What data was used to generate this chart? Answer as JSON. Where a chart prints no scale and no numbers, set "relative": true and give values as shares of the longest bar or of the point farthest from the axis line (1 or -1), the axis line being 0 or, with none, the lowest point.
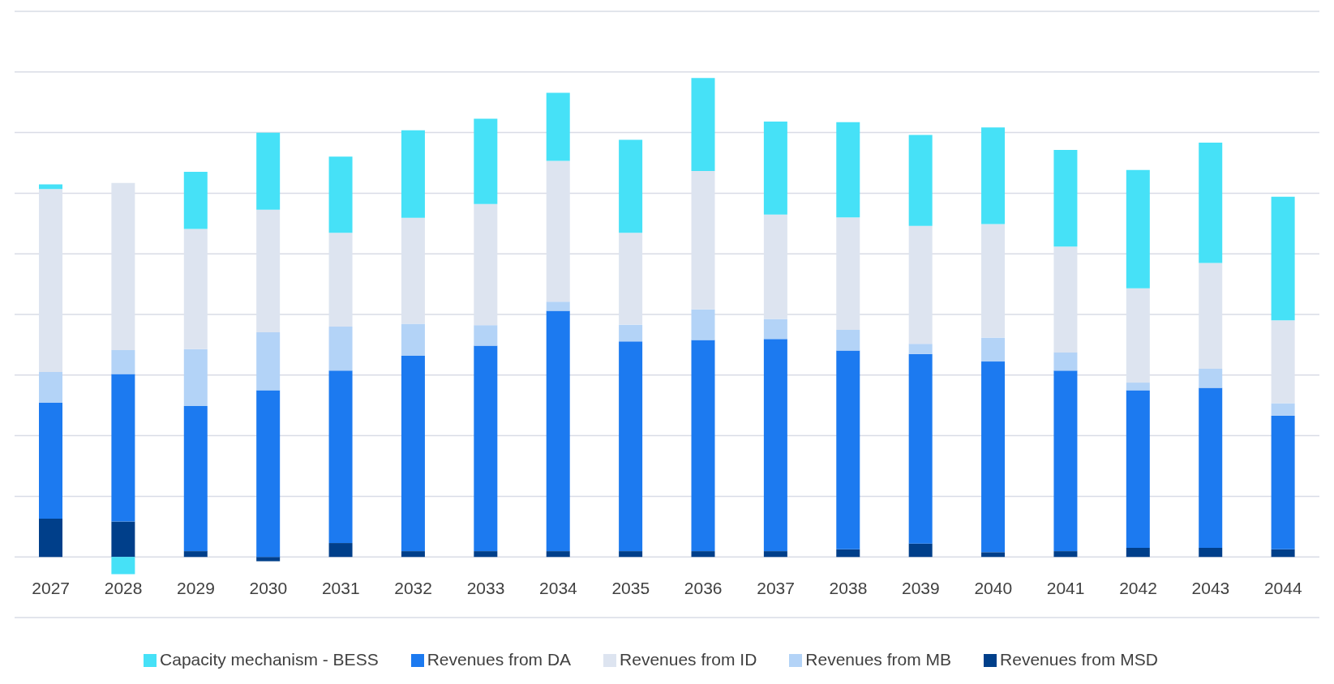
{
  "chart_data": {
    "type": "bar",
    "stacked": true,
    "relative": true,
    "grid": "y",
    "legend": "bottom",
    "categories": [
      "2027",
      "2028",
      "2029",
      "2030",
      "2031",
      "2032",
      "2033",
      "2034",
      "2035",
      "2036",
      "2037",
      "2038",
      "2039",
      "2040",
      "2041",
      "2042",
      "2043",
      "2044"
    ],
    "series": [
      {
        "name": "Revenues from MSD",
        "color": "#003f8a",
        "values": [
          0.08,
          0.074,
          0.012,
          -0.009,
          0.029,
          0.012,
          0.012,
          0.012,
          0.012,
          0.012,
          0.012,
          0.016,
          0.028,
          0.01,
          0.012,
          0.019,
          0.019,
          0.016
        ]
      },
      {
        "name": "Revenues from DA",
        "color": "#1c7af0",
        "values": [
          0.242,
          0.308,
          0.303,
          0.348,
          0.36,
          0.408,
          0.429,
          0.502,
          0.438,
          0.441,
          0.443,
          0.415,
          0.396,
          0.398,
          0.377,
          0.329,
          0.334,
          0.279
        ]
      },
      {
        "name": "Revenues from MB",
        "color": "#b3d3f7",
        "values": [
          0.064,
          0.05,
          0.119,
          0.121,
          0.092,
          0.067,
          0.043,
          0.019,
          0.035,
          0.064,
          0.042,
          0.043,
          0.021,
          0.05,
          0.038,
          0.016,
          0.04,
          0.026
        ]
      },
      {
        "name": "Revenues from ID",
        "color": "#dde4f0",
        "values": [
          0.382,
          0.349,
          0.251,
          0.256,
          0.196,
          0.221,
          0.253,
          0.294,
          0.192,
          0.289,
          0.218,
          0.235,
          0.246,
          0.237,
          0.221,
          0.197,
          0.221,
          0.173
        ]
      },
      {
        "name": "Capacity mechanism - BESS",
        "color": "#46e1f7",
        "values": [
          0.01,
          -0.036,
          0.119,
          0.161,
          0.159,
          0.183,
          0.178,
          0.142,
          0.194,
          0.194,
          0.194,
          0.199,
          0.19,
          0.202,
          0.202,
          0.247,
          0.251,
          0.258
        ]
      }
    ]
  }
}
